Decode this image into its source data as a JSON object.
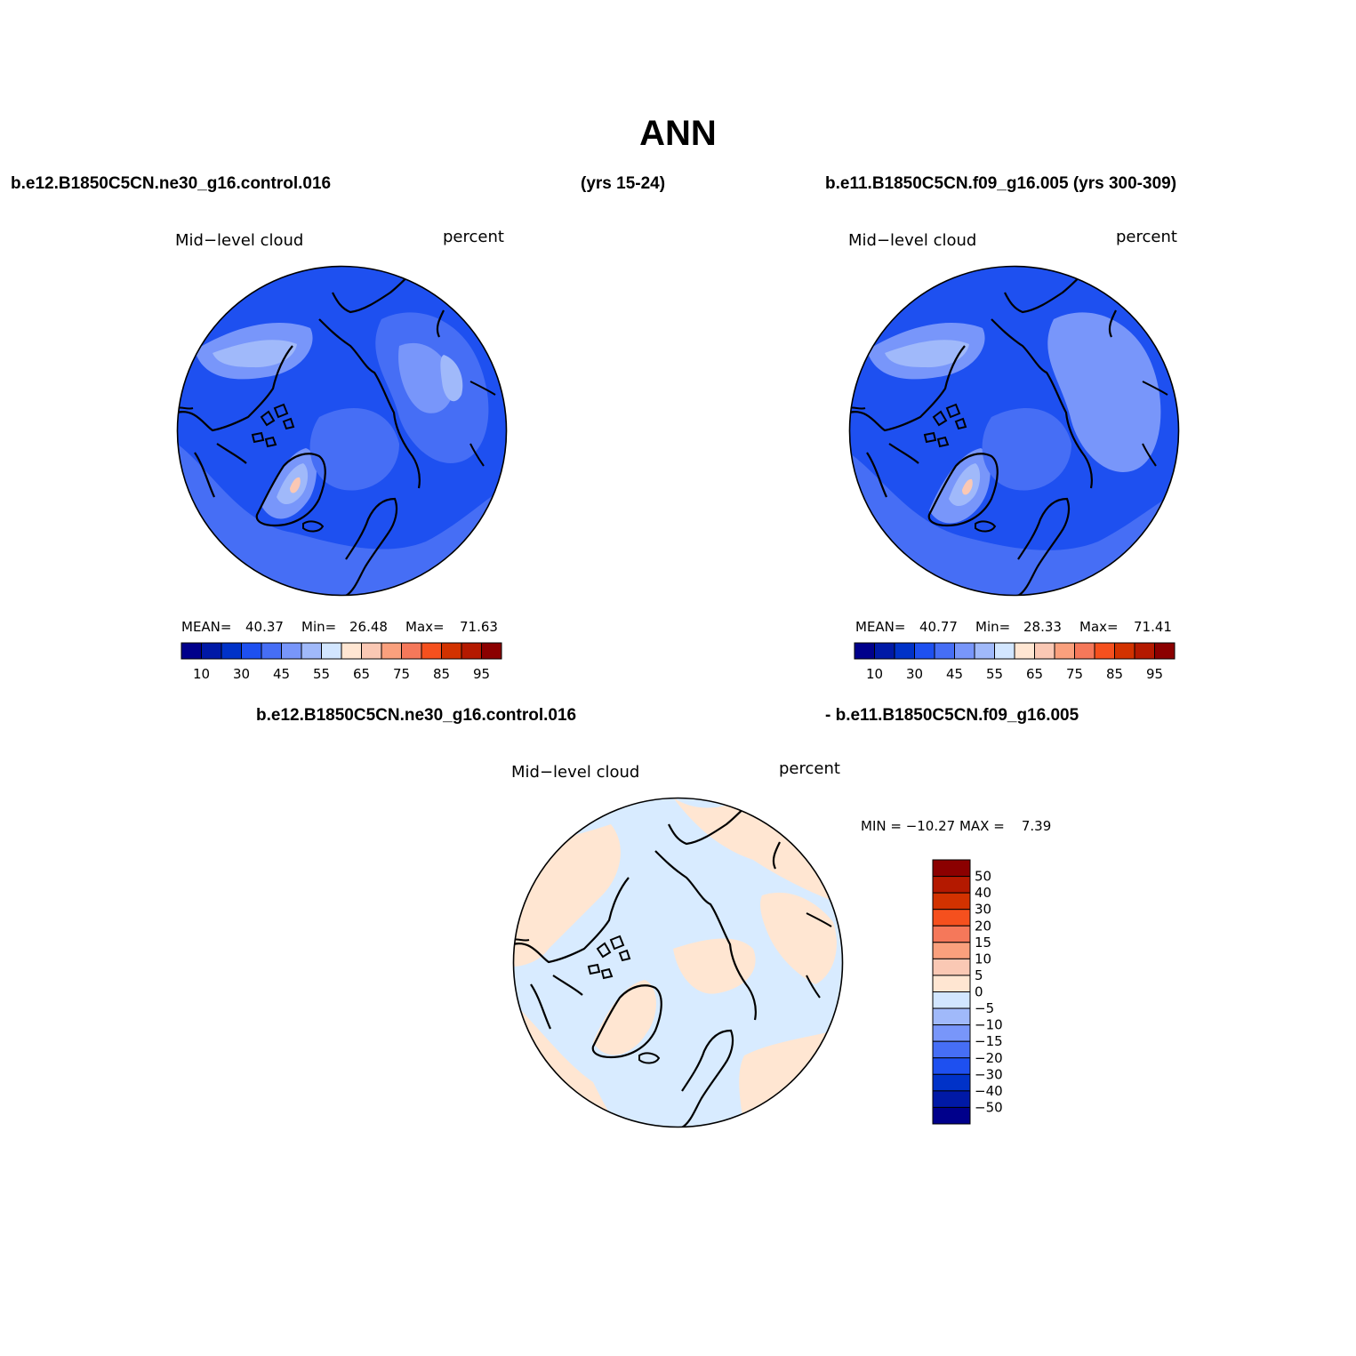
{
  "figure_title": "ANN",
  "top_left_case": "b.e12.B1850C5CN.ne30_g16.control.016",
  "top_left_years": "(yrs 15-24)",
  "top_right_case": "b.e11.B1850C5CN.f09_g16.005 (yrs 300-309)",
  "diff_case_a": "b.e12.B1850C5CN.ne30_g16.control.016",
  "diff_case_b": "- b.e11.B1850C5CN.f09_g16.005",
  "panels": [
    {
      "variable": "Mid−level cloud",
      "units": "percent",
      "mean_label": "MEAN=",
      "mean": "40.37",
      "min_label": "Min=",
      "min": "26.48",
      "max_label": "Max=",
      "max": "71.63"
    },
    {
      "variable": "Mid−level cloud",
      "units": "percent",
      "mean_label": "MEAN=",
      "mean": "40.77",
      "min_label": "Min=",
      "min": "28.33",
      "max_label": "Max=",
      "max": "71.41"
    }
  ],
  "diff_panel": {
    "variable": "Mid−level cloud",
    "units": "percent",
    "minmax_text": "MIN = −10.27 MAX =    7.39"
  },
  "colorbar_main": {
    "colors": [
      "#00008b",
      "#0019a6",
      "#0032c8",
      "#1e50f0",
      "#466ef5",
      "#7896fa",
      "#a0b9fa",
      "#d2e6ff",
      "#ffe6d2",
      "#fac8b4",
      "#faa07d",
      "#f5785a",
      "#f5501e",
      "#d23200",
      "#b41900",
      "#8b0000"
    ],
    "tick_labels": [
      "10",
      "30",
      "45",
      "55",
      "65",
      "75",
      "85",
      "95"
    ]
  },
  "colorbar_diff": {
    "colors": [
      "#8b0000",
      "#b41900",
      "#d23200",
      "#f5501e",
      "#f5785a",
      "#faa07d",
      "#fac8b4",
      "#ffe6d2",
      "#d2e6ff",
      "#a0b9fa",
      "#7896fa",
      "#466ef5",
      "#1e50f0",
      "#0032c8",
      "#0019a6",
      "#00008b"
    ],
    "tick_labels": [
      "50",
      "40",
      "30",
      "20",
      "15",
      "10",
      "5",
      "0",
      "−5",
      "−10",
      "−15",
      "−20",
      "−30",
      "−40",
      "−50"
    ]
  },
  "map_colors": {
    "ocean_base": "#1e50f0",
    "mid": "#466ef5",
    "light": "#7896fa",
    "lighter": "#a0b9fa",
    "lightest": "#d2e6ff",
    "warm": "#fac8b4",
    "diff_neg": "#d8ebff",
    "diff_pos": "#ffe6d2"
  }
}
